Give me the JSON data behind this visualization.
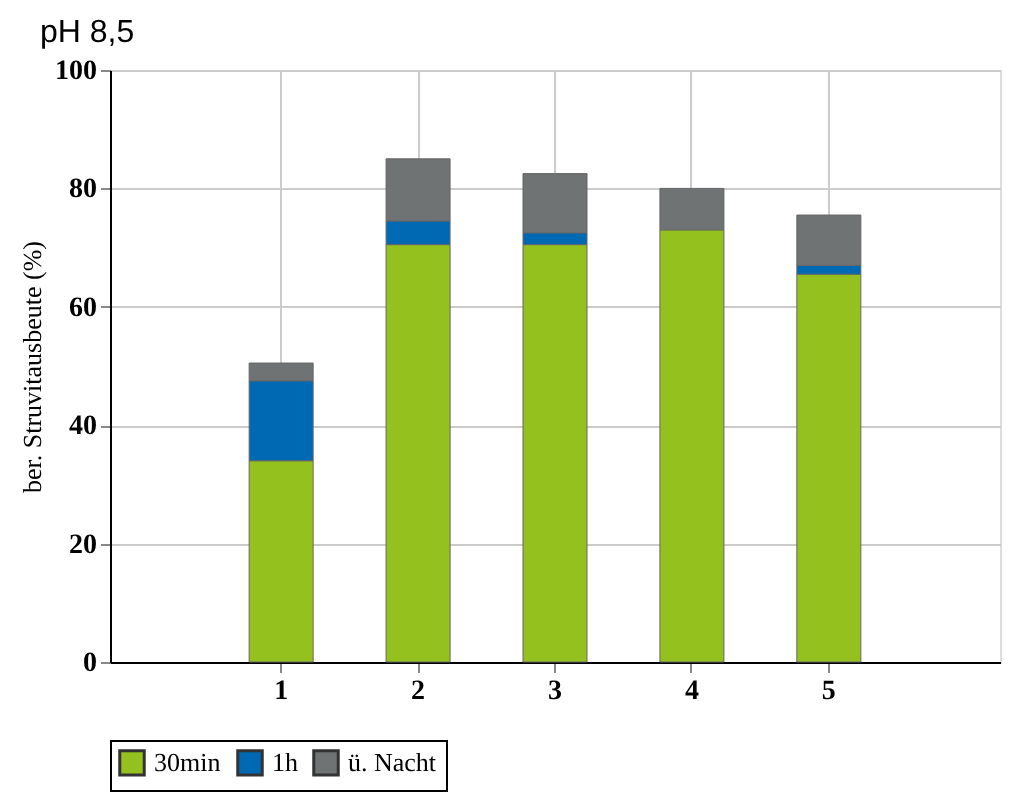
{
  "chart_data": {
    "type": "bar",
    "title": "pH 8,5",
    "ylabel": "ber. Struvitausbeute (%)",
    "categories": [
      "1",
      "2",
      "3",
      "4",
      "5"
    ],
    "stacked": true,
    "series": [
      {
        "name": "30min",
        "color": "#95c11f",
        "values": [
          34,
          70.5,
          70.5,
          73,
          65.5
        ]
      },
      {
        "name": "1h",
        "color": "#0069b4",
        "values": [
          13.5,
          4,
          2,
          null,
          1.5
        ]
      },
      {
        "name": "ü. Nacht",
        "color": "#6f7373",
        "values": [
          3,
          10.5,
          10,
          7,
          8.5
        ]
      }
    ],
    "ylim": [
      0,
      100
    ],
    "yticks": [
      0,
      20,
      40,
      60,
      80,
      100
    ],
    "grid": true,
    "legend": "bottom"
  }
}
